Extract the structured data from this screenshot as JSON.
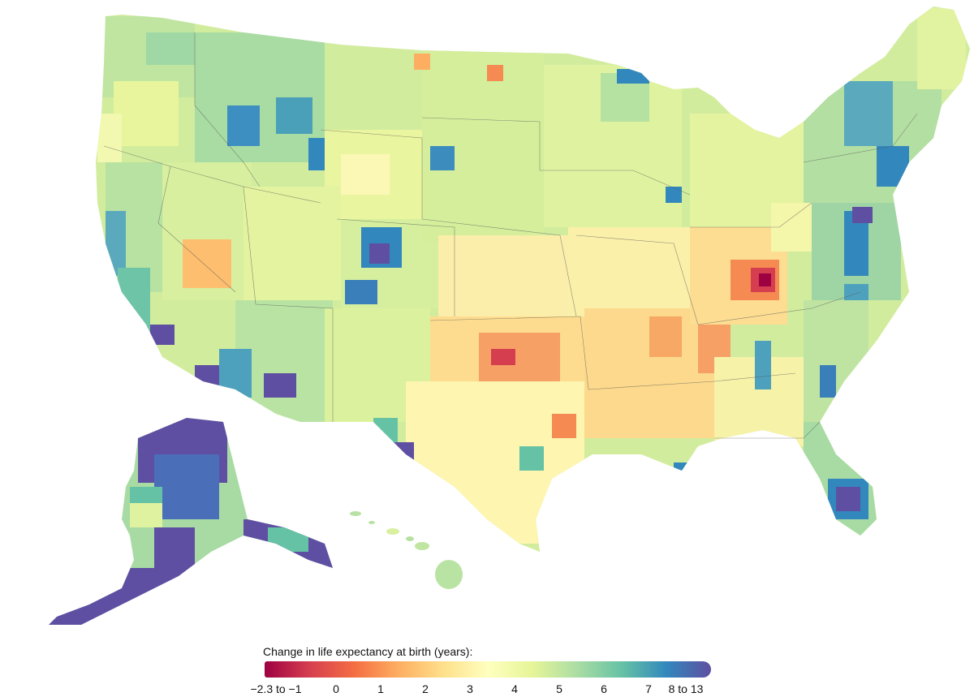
{
  "legend": {
    "title": "Change in life expectancy at birth (years):",
    "ticks": [
      {
        "label": "−2.3 to −1",
        "value": -1
      },
      {
        "label": "0",
        "value": 0
      },
      {
        "label": "1",
        "value": 1
      },
      {
        "label": "2",
        "value": 2
      },
      {
        "label": "3",
        "value": 3
      },
      {
        "label": "4",
        "value": 4
      },
      {
        "label": "5",
        "value": 5
      },
      {
        "label": "6",
        "value": 6
      },
      {
        "label": "7",
        "value": 7
      },
      {
        "label": "8 to 13",
        "value": 8
      }
    ],
    "colors": [
      "#9e0142",
      "#d53e4f",
      "#f46d43",
      "#fdae61",
      "#fee08b",
      "#ffffbf",
      "#e6f598",
      "#abdda4",
      "#66c2a5",
      "#3288bd",
      "#5e4fa2"
    ]
  },
  "map": {
    "type": "choropleth",
    "measure": "Change in life expectancy at birth (years)",
    "regions": [
      "contiguous-us",
      "alaska",
      "hawaii"
    ]
  }
}
